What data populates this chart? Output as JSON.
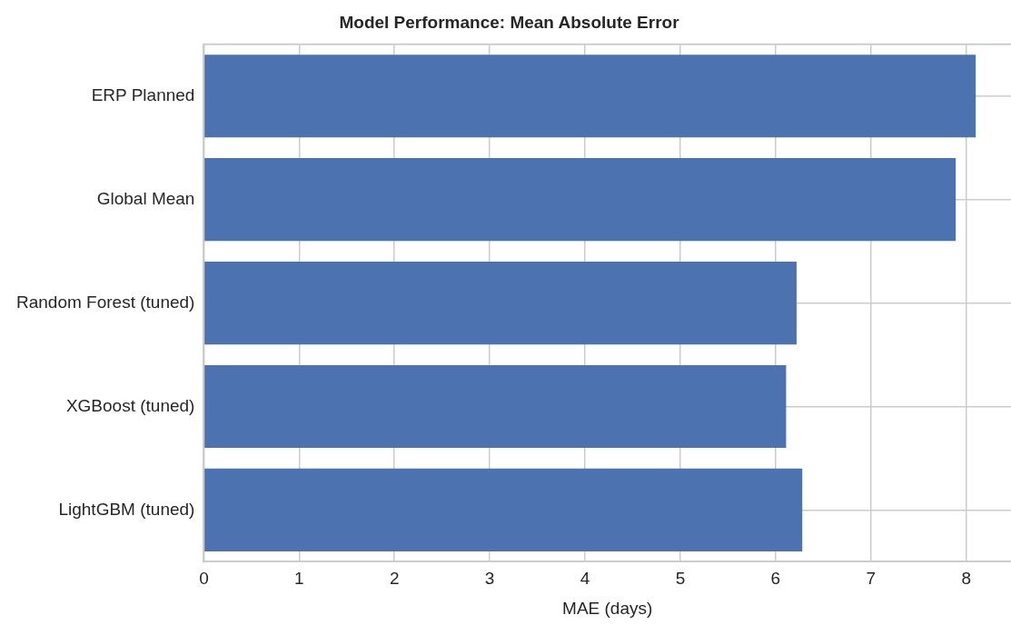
{
  "chart_data": {
    "type": "bar",
    "orientation": "horizontal",
    "title": "Model Performance: Mean Absolute Error",
    "xlabel": "MAE (days)",
    "categories": [
      "ERP Planned",
      "Global Mean",
      "Random Forest (tuned)",
      "XGBoost (tuned)",
      "LightGBM (tuned)"
    ],
    "values": [
      8.1,
      7.89,
      6.22,
      6.11,
      6.28
    ],
    "color": "#4c72b0",
    "xlim": [
      0,
      8.47
    ],
    "xticks": [
      0,
      1,
      2,
      3,
      4,
      5,
      6,
      7,
      8
    ],
    "grid": true,
    "legend": false
  }
}
